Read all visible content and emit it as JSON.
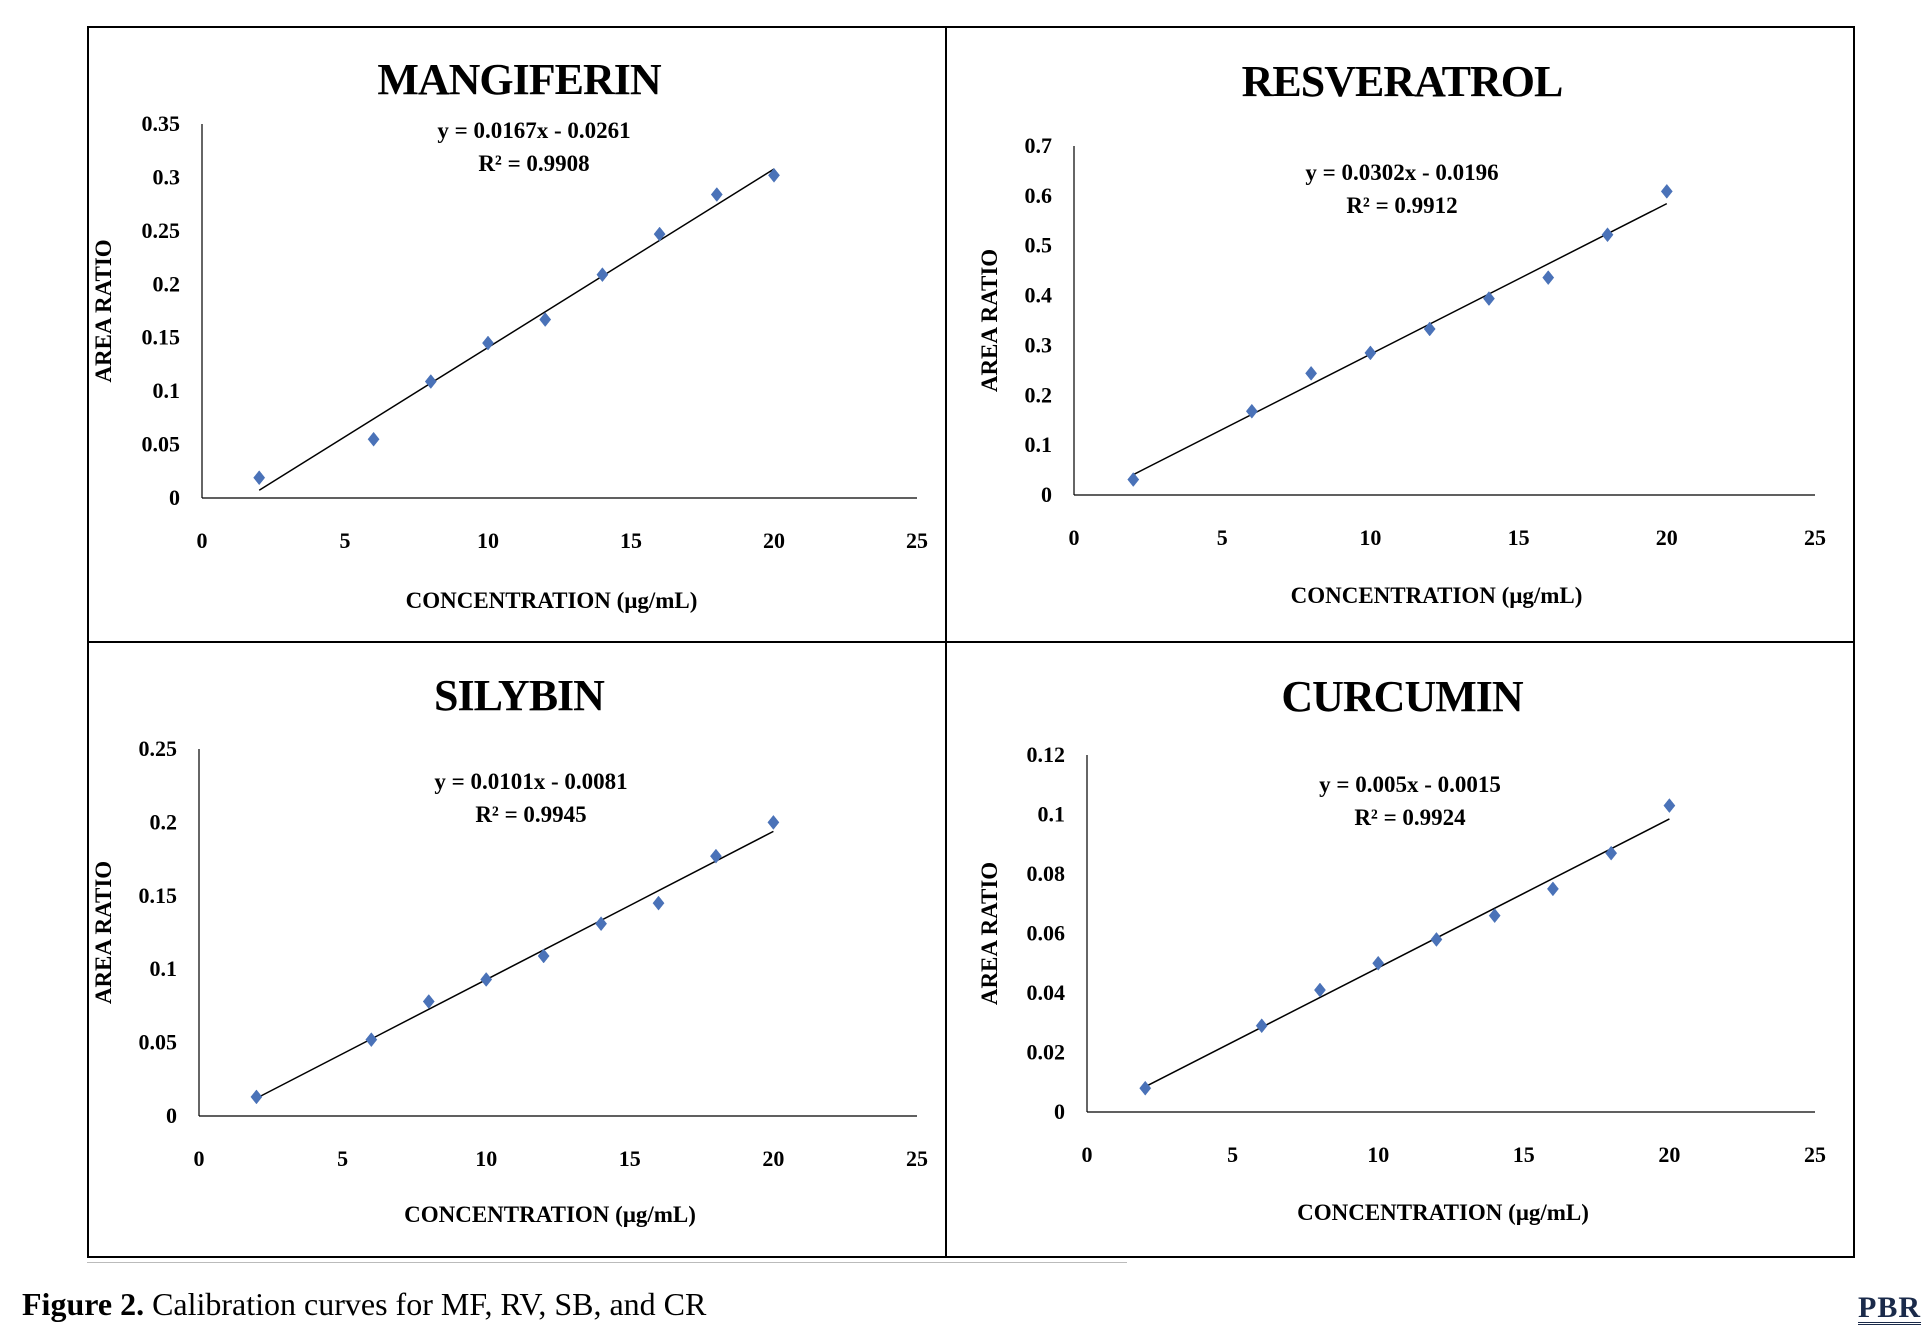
{
  "figure": {
    "caption_label": "Figure 2.",
    "caption_text": " Calibration curves for MF, RV, SB, and CR",
    "logo_text": "PBR"
  },
  "colors": {
    "marker": "#4a72b8",
    "trendline": "#000000",
    "axis": "#000000"
  },
  "chart_data": [
    {
      "type": "scatter",
      "title": "MANGIFERIN",
      "xlabel": "CONCENTRATION  (μg/mL)",
      "ylabel": "AREA RATIO",
      "xlim": [
        0,
        25
      ],
      "ylim": [
        0,
        0.35
      ],
      "xticks": [
        "0",
        "5",
        "10",
        "15",
        "20",
        "25"
      ],
      "yticks": [
        "0",
        "0.05",
        "0.1",
        "0.15",
        "0.2",
        "0.25",
        "0.3",
        "0.35"
      ],
      "grid": false,
      "x": [
        2,
        6,
        8,
        10,
        12,
        14,
        16,
        18,
        20
      ],
      "y": [
        0.019,
        0.055,
        0.109,
        0.145,
        0.167,
        0.209,
        0.247,
        0.284,
        0.302
      ],
      "equation": "y = 0.0167x - 0.0261",
      "r2": "R² = 0.9908",
      "trend": {
        "slope": 0.0167,
        "intercept": -0.0261,
        "x_range": [
          2,
          20
        ]
      }
    },
    {
      "type": "scatter",
      "title": "RESVERATROL",
      "xlabel": "CONCENTRATION  (μg/mL)",
      "ylabel": "AREA RATIO",
      "xlim": [
        0,
        25
      ],
      "ylim": [
        0,
        0.7
      ],
      "xticks": [
        "0",
        "5",
        "10",
        "15",
        "20",
        "25"
      ],
      "yticks": [
        "0",
        "0.1",
        "0.2",
        "0.3",
        "0.4",
        "0.5",
        "0.6",
        "0.7"
      ],
      "grid": false,
      "x": [
        2,
        6,
        8,
        10,
        12,
        14,
        16,
        18,
        20
      ],
      "y": [
        0.031,
        0.168,
        0.244,
        0.285,
        0.333,
        0.394,
        0.436,
        0.522,
        0.609
      ],
      "equation": "y = 0.0302x - 0.0196",
      "r2": "R² = 0.9912",
      "trend": {
        "slope": 0.0302,
        "intercept": -0.0196,
        "x_range": [
          2,
          20
        ]
      }
    },
    {
      "type": "scatter",
      "title": "SILYBIN",
      "xlabel": "CONCENTRATION  (μg/mL)",
      "ylabel": "AREA RATIO",
      "xlim": [
        0,
        25
      ],
      "ylim": [
        0,
        0.25
      ],
      "xticks": [
        "0",
        "5",
        "10",
        "15",
        "20",
        "25"
      ],
      "yticks": [
        "0",
        "0.05",
        "0.1",
        "0.15",
        "0.2",
        "0.25"
      ],
      "grid": false,
      "x": [
        2,
        6,
        8,
        10,
        12,
        14,
        16,
        18,
        20
      ],
      "y": [
        0.013,
        0.052,
        0.078,
        0.093,
        0.109,
        0.131,
        0.145,
        0.177,
        0.2
      ],
      "equation": "y = 0.0101x - 0.0081",
      "r2": "R² = 0.9945",
      "trend": {
        "slope": 0.0101,
        "intercept": -0.0081,
        "x_range": [
          2,
          20
        ]
      }
    },
    {
      "type": "scatter",
      "title": "CURCUMIN",
      "xlabel": "CONCENTRATION  (μg/mL)",
      "ylabel": "AREA RATIO",
      "xlim": [
        0,
        25
      ],
      "ylim": [
        0,
        0.12
      ],
      "xticks": [
        "0",
        "5",
        "10",
        "15",
        "20",
        "25"
      ],
      "yticks": [
        "0",
        "0.02",
        "0.04",
        "0.06",
        "0.08",
        "0.1",
        "0.12"
      ],
      "grid": false,
      "x": [
        2,
        6,
        8,
        10,
        12,
        14,
        16,
        18,
        20
      ],
      "y": [
        0.008,
        0.029,
        0.041,
        0.05,
        0.058,
        0.066,
        0.075,
        0.087,
        0.103
      ],
      "equation": "y = 0.005x - 0.0015",
      "r2": "R² = 0.9924",
      "trend": {
        "slope": 0.005,
        "intercept": -0.0015,
        "x_range": [
          2,
          20
        ]
      }
    }
  ]
}
